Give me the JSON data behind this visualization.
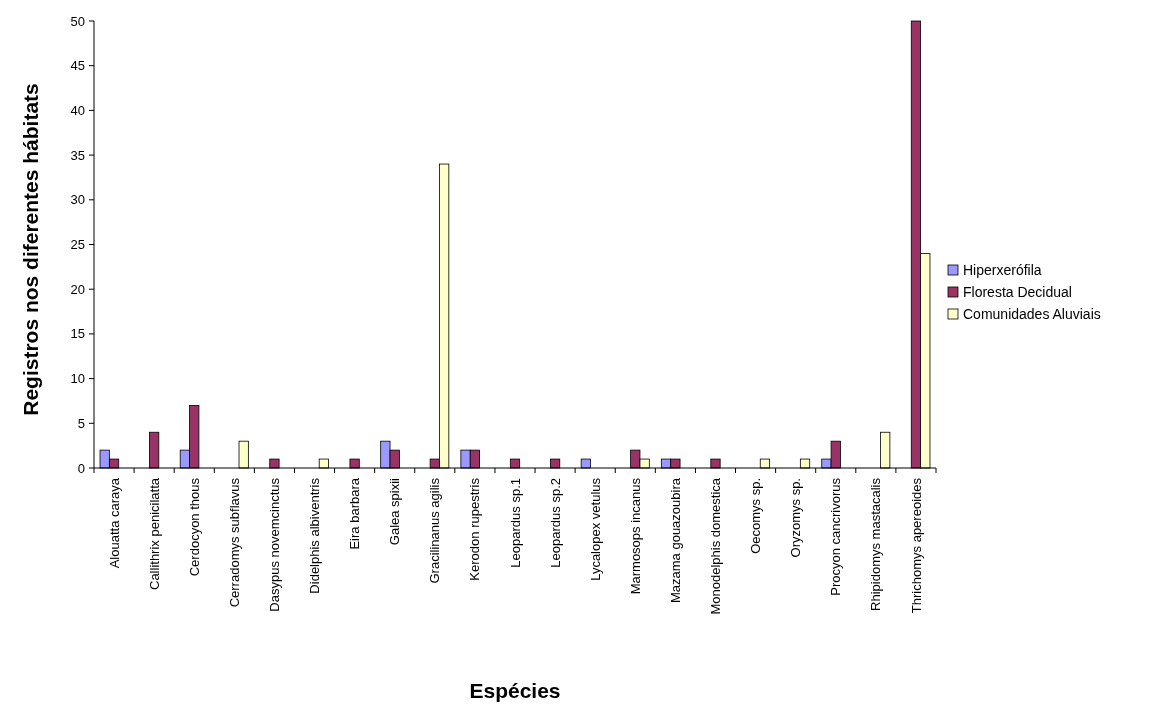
{
  "chart_data": {
    "type": "bar",
    "xlabel": "Espécies",
    "ylabel": "Registros nos diferentes hábitats",
    "categories": [
      "Alouatta caraya",
      "Callithrix penicilatta",
      "Cerdocyon thous",
      "Cerradomys subflavus",
      "Dasypus novemcinctus",
      "Didelphis albiventris",
      "Eira barbara",
      "Galea spixii",
      "Gracilinanus agilis",
      "Kerodon rupestris",
      "Leopardus sp.1",
      "Leopardus sp.2",
      "Lycalopex vetulus",
      "Marmosops incanus",
      "Mazama gouazoubira",
      "Monodelphis domestica",
      "Oecomys sp.",
      "Oryzomys sp.",
      "Procyon cancrivorus",
      "Rhipidomys mastacalis",
      "Thrichomys apereoides"
    ],
    "series": [
      {
        "name": "Hiperxerófila",
        "color": "#9999ff",
        "values": [
          2,
          0,
          2,
          0,
          0,
          0,
          0,
          3,
          0,
          2,
          0,
          0,
          1,
          0,
          1,
          0,
          0,
          0,
          1,
          0,
          0
        ]
      },
      {
        "name": "Floresta Decidual",
        "color": "#993366",
        "values": [
          1,
          4,
          7,
          0,
          1,
          0,
          1,
          2,
          1,
          2,
          1,
          1,
          0,
          2,
          1,
          1,
          0,
          0,
          3,
          0,
          50
        ]
      },
      {
        "name": "Comunidades Aluviais",
        "color": "#ffffcc",
        "values": [
          0,
          0,
          0,
          3,
          0,
          1,
          0,
          0,
          34,
          0,
          0,
          0,
          0,
          1,
          0,
          0,
          1,
          1,
          0,
          4,
          24
        ]
      }
    ],
    "ylim": [
      0,
      50
    ],
    "yticks": [
      0,
      5,
      10,
      15,
      20,
      25,
      30,
      35,
      40,
      45,
      50
    ],
    "grid": false,
    "legend": "right"
  }
}
